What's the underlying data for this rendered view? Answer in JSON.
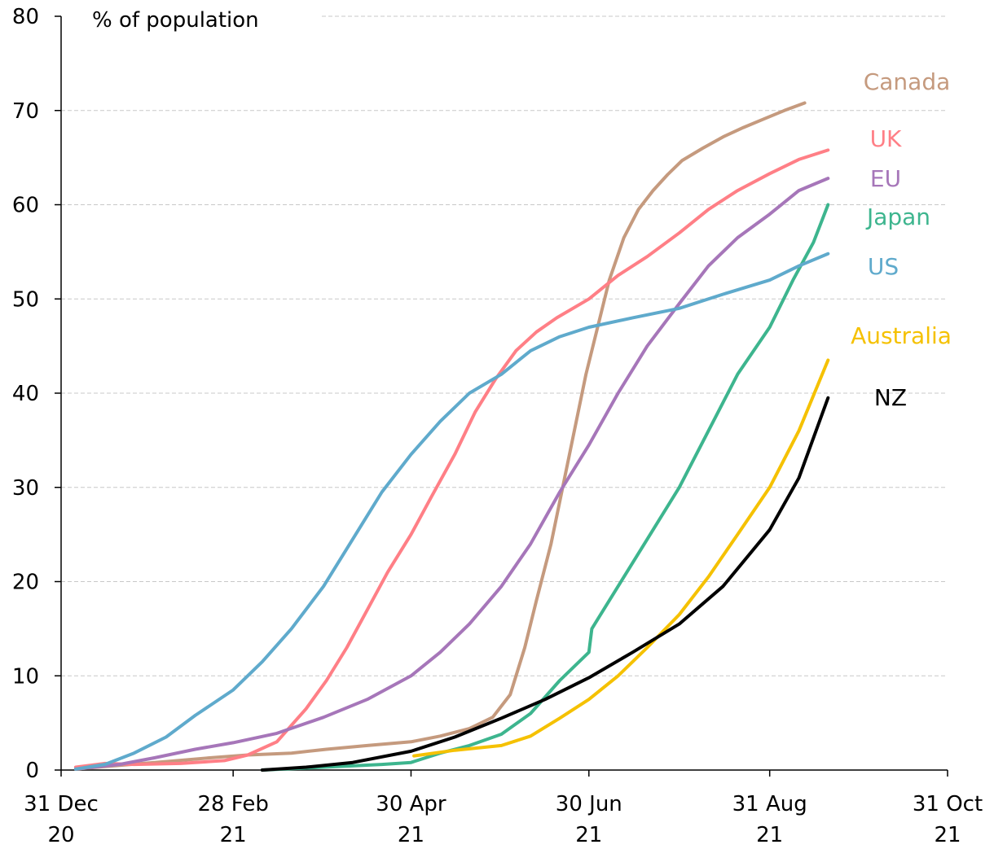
{
  "chart_data": {
    "type": "line",
    "title": "",
    "ylabel": "% of population",
    "xlabel": "",
    "ylim": [
      0,
      80
    ],
    "yticks": [
      0,
      10,
      20,
      30,
      40,
      50,
      60,
      70,
      80
    ],
    "xlim": [
      "2020-12-31",
      "2021-10-31"
    ],
    "xticks": [
      {
        "date": "2020-12-31",
        "label1": "31 Dec",
        "label2": "20"
      },
      {
        "date": "2021-02-28",
        "label1": "28 Feb",
        "label2": "21"
      },
      {
        "date": "2021-04-30",
        "label1": "30 Apr",
        "label2": "21"
      },
      {
        "date": "2021-06-30",
        "label1": "30 Jun",
        "label2": "21"
      },
      {
        "date": "2021-08-31",
        "label1": "31 Aug",
        "label2": "21"
      },
      {
        "date": "2021-10-31",
        "label1": "31 Oct",
        "label2": "21"
      }
    ],
    "grid": "horizontal dashed",
    "series": [
      {
        "name": "Canada",
        "color": "#c59a7e",
        "points": [
          [
            "2021-01-05",
            0.1
          ],
          [
            "2021-01-20",
            0.5
          ],
          [
            "2021-02-05",
            0.9
          ],
          [
            "2021-02-20",
            1.3
          ],
          [
            "2021-03-05",
            1.6
          ],
          [
            "2021-03-20",
            1.8
          ],
          [
            "2021-04-01",
            2.2
          ],
          [
            "2021-04-15",
            2.6
          ],
          [
            "2021-04-30",
            3.0
          ],
          [
            "2021-05-10",
            3.6
          ],
          [
            "2021-05-20",
            4.4
          ],
          [
            "2021-05-28",
            5.6
          ],
          [
            "2021-06-03",
            8.0
          ],
          [
            "2021-06-08",
            13.0
          ],
          [
            "2021-06-12",
            18.0
          ],
          [
            "2021-06-17",
            24.0
          ],
          [
            "2021-06-21",
            30.0
          ],
          [
            "2021-06-25",
            36.0
          ],
          [
            "2021-06-29",
            42.0
          ],
          [
            "2021-07-03",
            47.0
          ],
          [
            "2021-07-07",
            52.0
          ],
          [
            "2021-07-12",
            56.5
          ],
          [
            "2021-07-17",
            59.5
          ],
          [
            "2021-07-22",
            61.5
          ],
          [
            "2021-07-27",
            63.2
          ],
          [
            "2021-08-01",
            64.7
          ],
          [
            "2021-08-08",
            66.0
          ],
          [
            "2021-08-15",
            67.2
          ],
          [
            "2021-08-22",
            68.2
          ],
          [
            "2021-08-29",
            69.1
          ],
          [
            "2021-09-05",
            70.0
          ],
          [
            "2021-09-12",
            70.8
          ]
        ]
      },
      {
        "name": "UK",
        "color": "#ff7f86",
        "points": [
          [
            "2021-01-05",
            0.3
          ],
          [
            "2021-01-15",
            0.7
          ],
          [
            "2021-01-25",
            0.6
          ],
          [
            "2021-02-10",
            0.7
          ],
          [
            "2021-02-25",
            1.0
          ],
          [
            "2021-03-05",
            1.6
          ],
          [
            "2021-03-15",
            3.0
          ],
          [
            "2021-03-25",
            6.5
          ],
          [
            "2021-04-01",
            9.5
          ],
          [
            "2021-04-08",
            13.0
          ],
          [
            "2021-04-15",
            17.0
          ],
          [
            "2021-04-22",
            21.0
          ],
          [
            "2021-04-30",
            25.0
          ],
          [
            "2021-05-07",
            29.0
          ],
          [
            "2021-05-15",
            33.5
          ],
          [
            "2021-05-22",
            38.0
          ],
          [
            "2021-05-29",
            41.5
          ],
          [
            "2021-06-05",
            44.5
          ],
          [
            "2021-06-12",
            46.5
          ],
          [
            "2021-06-19",
            48.0
          ],
          [
            "2021-06-30",
            50.0
          ],
          [
            "2021-07-10",
            52.5
          ],
          [
            "2021-07-20",
            54.5
          ],
          [
            "2021-07-31",
            57.0
          ],
          [
            "2021-08-10",
            59.5
          ],
          [
            "2021-08-20",
            61.5
          ],
          [
            "2021-08-31",
            63.3
          ],
          [
            "2021-09-10",
            64.8
          ],
          [
            "2021-09-20",
            65.8
          ]
        ]
      },
      {
        "name": "EU",
        "color": "#a676b9",
        "points": [
          [
            "2021-01-05",
            0.1
          ],
          [
            "2021-01-20",
            0.6
          ],
          [
            "2021-02-01",
            1.3
          ],
          [
            "2021-02-15",
            2.2
          ],
          [
            "2021-02-28",
            2.9
          ],
          [
            "2021-03-15",
            3.9
          ],
          [
            "2021-03-31",
            5.6
          ],
          [
            "2021-04-15",
            7.5
          ],
          [
            "2021-04-30",
            10.0
          ],
          [
            "2021-05-10",
            12.5
          ],
          [
            "2021-05-20",
            15.5
          ],
          [
            "2021-05-31",
            19.5
          ],
          [
            "2021-06-10",
            24.0
          ],
          [
            "2021-06-20",
            29.5
          ],
          [
            "2021-06-30",
            34.5
          ],
          [
            "2021-07-10",
            40.0
          ],
          [
            "2021-07-20",
            45.0
          ],
          [
            "2021-07-31",
            49.5
          ],
          [
            "2021-08-10",
            53.5
          ],
          [
            "2021-08-20",
            56.5
          ],
          [
            "2021-08-31",
            59.0
          ],
          [
            "2021-09-10",
            61.5
          ],
          [
            "2021-09-20",
            62.8
          ]
        ]
      },
      {
        "name": "Japan",
        "color": "#3db58e",
        "points": [
          [
            "2021-03-10",
            0.0
          ],
          [
            "2021-03-31",
            0.3
          ],
          [
            "2021-04-20",
            0.6
          ],
          [
            "2021-04-30",
            0.8
          ],
          [
            "2021-05-10",
            1.8
          ],
          [
            "2021-05-20",
            2.6
          ],
          [
            "2021-05-31",
            3.8
          ],
          [
            "2021-06-10",
            6.0
          ],
          [
            "2021-06-20",
            9.5
          ],
          [
            "2021-06-30",
            12.5
          ],
          [
            "2021-07-01",
            15.0
          ],
          [
            "2021-07-10",
            19.5
          ],
          [
            "2021-07-20",
            24.5
          ],
          [
            "2021-07-31",
            30.0
          ],
          [
            "2021-08-10",
            36.0
          ],
          [
            "2021-08-20",
            42.0
          ],
          [
            "2021-08-31",
            47.0
          ],
          [
            "2021-09-08",
            52.0
          ],
          [
            "2021-09-15",
            56.0
          ],
          [
            "2021-09-20",
            60.0
          ]
        ]
      },
      {
        "name": "US",
        "color": "#5faacc",
        "points": [
          [
            "2021-01-05",
            0.1
          ],
          [
            "2021-01-15",
            0.6
          ],
          [
            "2021-01-25",
            1.8
          ],
          [
            "2021-02-05",
            3.5
          ],
          [
            "2021-02-15",
            5.8
          ],
          [
            "2021-02-28",
            8.5
          ],
          [
            "2021-03-10",
            11.5
          ],
          [
            "2021-03-20",
            15.0
          ],
          [
            "2021-03-31",
            19.5
          ],
          [
            "2021-04-10",
            24.5
          ],
          [
            "2021-04-20",
            29.5
          ],
          [
            "2021-04-30",
            33.5
          ],
          [
            "2021-05-10",
            37.0
          ],
          [
            "2021-05-20",
            40.0
          ],
          [
            "2021-05-31",
            42.0
          ],
          [
            "2021-06-10",
            44.5
          ],
          [
            "2021-06-20",
            46.0
          ],
          [
            "2021-06-30",
            47.0
          ],
          [
            "2021-07-15",
            48.0
          ],
          [
            "2021-07-31",
            49.0
          ],
          [
            "2021-08-15",
            50.5
          ],
          [
            "2021-08-31",
            52.0
          ],
          [
            "2021-09-10",
            53.5
          ],
          [
            "2021-09-20",
            54.8
          ]
        ]
      },
      {
        "name": "Australia",
        "color": "#f5c100",
        "points": [
          [
            "2021-05-01",
            1.5
          ],
          [
            "2021-05-15",
            2.1
          ],
          [
            "2021-05-31",
            2.6
          ],
          [
            "2021-06-10",
            3.6
          ],
          [
            "2021-06-20",
            5.5
          ],
          [
            "2021-06-30",
            7.5
          ],
          [
            "2021-07-10",
            10.0
          ],
          [
            "2021-07-20",
            13.0
          ],
          [
            "2021-07-31",
            16.5
          ],
          [
            "2021-08-10",
            20.5
          ],
          [
            "2021-08-20",
            25.0
          ],
          [
            "2021-08-31",
            30.0
          ],
          [
            "2021-09-10",
            36.0
          ],
          [
            "2021-09-20",
            43.5
          ]
        ]
      },
      {
        "name": "NZ",
        "color": "#000000",
        "points": [
          [
            "2021-03-10",
            0.0
          ],
          [
            "2021-03-25",
            0.3
          ],
          [
            "2021-04-10",
            0.8
          ],
          [
            "2021-04-30",
            2.0
          ],
          [
            "2021-05-15",
            3.5
          ],
          [
            "2021-05-31",
            5.5
          ],
          [
            "2021-06-15",
            7.5
          ],
          [
            "2021-06-30",
            9.8
          ],
          [
            "2021-07-15",
            12.5
          ],
          [
            "2021-07-31",
            15.5
          ],
          [
            "2021-08-15",
            19.5
          ],
          [
            "2021-08-31",
            25.5
          ],
          [
            "2021-09-10",
            31.0
          ],
          [
            "2021-09-20",
            39.5
          ]
        ]
      }
    ]
  }
}
